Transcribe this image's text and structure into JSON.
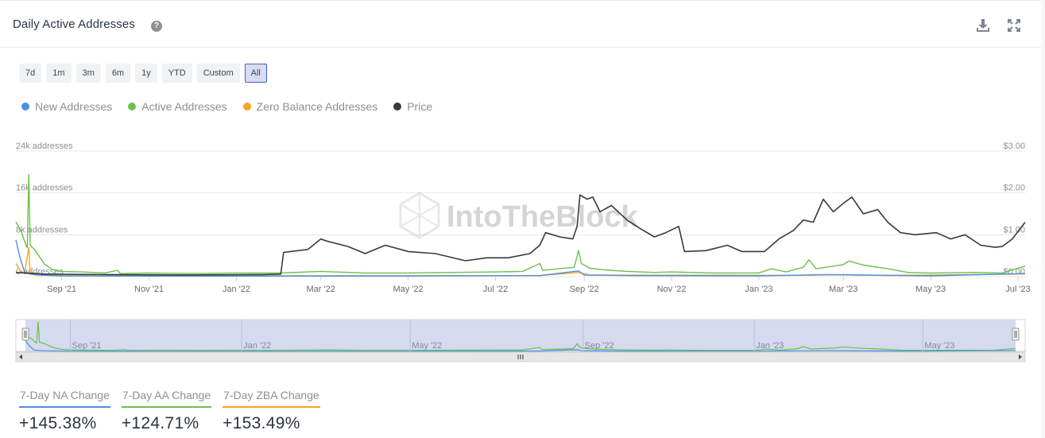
{
  "header": {
    "title": "Daily Active Addresses",
    "help_icon": "question-circle-icon",
    "download_icon": "download-icon",
    "fullscreen_icon": "expand-icon"
  },
  "ranges": {
    "options": [
      "7d",
      "1m",
      "3m",
      "6m",
      "1y",
      "YTD",
      "Custom",
      "All"
    ],
    "selected": "All"
  },
  "legend": [
    {
      "label": "New Addresses",
      "color": "#4a90e2"
    },
    {
      "label": "Active Addresses",
      "color": "#6cc04a"
    },
    {
      "label": "Zero Balance Addresses",
      "color": "#f5a623"
    },
    {
      "label": "Price",
      "color": "#3a3a3a"
    }
  ],
  "watermark": "IntoTheBlock",
  "chart_data": {
    "type": "line",
    "x_range": [
      "2021-07-31",
      "2023-07-06"
    ],
    "x_ticks": [
      "Sep '21",
      "Nov '21",
      "Jan '22",
      "Mar '22",
      "May '22",
      "Jul '22",
      "Sep '22",
      "Nov '22",
      "Jan '23",
      "Mar '23",
      "May '23",
      "Jul '23"
    ],
    "y_left": {
      "ticks": [
        "0 addresses",
        "8k addresses",
        "16k addresses",
        "24k addresses"
      ],
      "range": [
        0,
        24000
      ]
    },
    "y_right": {
      "ticks": [
        "$0.00",
        "$1.00",
        "$2.00",
        "$3.00"
      ],
      "range": [
        0,
        3
      ]
    },
    "navigator_ticks": [
      "Sep '21",
      "Jan '22",
      "May '22",
      "Sep '22",
      "Jan '23",
      "May '23"
    ],
    "series": [
      {
        "name": "New Addresses",
        "axis": "left",
        "color": "#4a90e2",
        "points": [
          [
            "2021-07-31",
            7000
          ],
          [
            "2021-08-03",
            3500
          ],
          [
            "2021-08-06",
            900
          ],
          [
            "2021-08-10",
            500
          ],
          [
            "2021-08-15",
            300
          ],
          [
            "2021-09-01",
            150
          ],
          [
            "2021-11-01",
            100
          ],
          [
            "2022-01-01",
            100
          ],
          [
            "2022-05-01",
            120
          ],
          [
            "2022-08-01",
            200
          ],
          [
            "2022-08-28",
            1100
          ],
          [
            "2022-09-01",
            300
          ],
          [
            "2022-10-01",
            200
          ],
          [
            "2023-01-01",
            150
          ],
          [
            "2023-02-20",
            400
          ],
          [
            "2023-03-10",
            300
          ],
          [
            "2023-05-01",
            150
          ],
          [
            "2023-07-06",
            600
          ]
        ]
      },
      {
        "name": "Active Addresses",
        "axis": "left",
        "color": "#6cc04a",
        "points": [
          [
            "2021-07-31",
            10500
          ],
          [
            "2021-08-02",
            9500
          ],
          [
            "2021-08-04",
            8500
          ],
          [
            "2021-08-06",
            6800
          ],
          [
            "2021-08-08",
            5500
          ],
          [
            "2021-08-09",
            19500
          ],
          [
            "2021-08-10",
            6000
          ],
          [
            "2021-08-13",
            5200
          ],
          [
            "2021-08-16",
            4000
          ],
          [
            "2021-08-20",
            2400
          ],
          [
            "2021-08-25",
            1400
          ],
          [
            "2021-09-01",
            1000
          ],
          [
            "2021-09-15",
            900
          ],
          [
            "2021-10-01",
            700
          ],
          [
            "2021-10-10",
            1200
          ],
          [
            "2021-10-12",
            600
          ],
          [
            "2021-11-01",
            700
          ],
          [
            "2021-12-01",
            600
          ],
          [
            "2022-01-01",
            700
          ],
          [
            "2022-02-01",
            700
          ],
          [
            "2022-03-01",
            1000
          ],
          [
            "2022-04-01",
            700
          ],
          [
            "2022-05-01",
            700
          ],
          [
            "2022-06-01",
            800
          ],
          [
            "2022-07-01",
            900
          ],
          [
            "2022-07-20",
            1000
          ],
          [
            "2022-08-01",
            2500
          ],
          [
            "2022-08-03",
            1200
          ],
          [
            "2022-08-25",
            1800
          ],
          [
            "2022-08-28",
            5000
          ],
          [
            "2022-08-30",
            2500
          ],
          [
            "2022-09-05",
            1600
          ],
          [
            "2022-09-15",
            1300
          ],
          [
            "2022-10-01",
            1000
          ],
          [
            "2022-10-20",
            800
          ],
          [
            "2022-11-01",
            900
          ],
          [
            "2022-12-01",
            700
          ],
          [
            "2023-01-01",
            700
          ],
          [
            "2023-01-10",
            1500
          ],
          [
            "2023-01-20",
            900
          ],
          [
            "2023-02-01",
            1800
          ],
          [
            "2023-02-05",
            3200
          ],
          [
            "2023-02-10",
            1500
          ],
          [
            "2023-03-01",
            2300
          ],
          [
            "2023-03-05",
            3000
          ],
          [
            "2023-03-15",
            2200
          ],
          [
            "2023-04-01",
            1500
          ],
          [
            "2023-04-15",
            800
          ],
          [
            "2023-05-01",
            700
          ],
          [
            "2023-06-01",
            800
          ],
          [
            "2023-06-20",
            700
          ],
          [
            "2023-07-06",
            2000
          ]
        ]
      },
      {
        "name": "Zero Balance Addresses",
        "axis": "left",
        "color": "#f5a623",
        "points": [
          [
            "2021-07-31",
            2500
          ],
          [
            "2021-08-03",
            1200
          ],
          [
            "2021-08-06",
            600
          ],
          [
            "2021-08-09",
            5500
          ],
          [
            "2021-08-10",
            900
          ],
          [
            "2021-08-14",
            600
          ],
          [
            "2021-08-20",
            300
          ],
          [
            "2021-09-01",
            200
          ],
          [
            "2022-01-01",
            150
          ],
          [
            "2022-08-01",
            200
          ],
          [
            "2022-08-28",
            800
          ],
          [
            "2022-09-05",
            300
          ],
          [
            "2023-02-01",
            250
          ],
          [
            "2023-03-01",
            400
          ],
          [
            "2023-04-01",
            250
          ],
          [
            "2023-07-06",
            500
          ]
        ]
      },
      {
        "name": "Price",
        "axis": "right",
        "color": "#3a3a3a",
        "points": [
          [
            "2021-07-31",
            0.1
          ],
          [
            "2021-08-20",
            0.06
          ],
          [
            "2021-10-01",
            0.05
          ],
          [
            "2021-12-01",
            0.04
          ],
          [
            "2022-01-20",
            0.05
          ],
          [
            "2022-02-01",
            0.06
          ],
          [
            "2022-02-03",
            0.58
          ],
          [
            "2022-02-20",
            0.65
          ],
          [
            "2022-03-01",
            0.9
          ],
          [
            "2022-03-05",
            0.85
          ],
          [
            "2022-03-20",
            0.72
          ],
          [
            "2022-04-01",
            0.55
          ],
          [
            "2022-04-15",
            0.75
          ],
          [
            "2022-05-01",
            0.6
          ],
          [
            "2022-05-20",
            0.55
          ],
          [
            "2022-06-10",
            0.38
          ],
          [
            "2022-06-25",
            0.45
          ],
          [
            "2022-07-10",
            0.45
          ],
          [
            "2022-07-25",
            0.55
          ],
          [
            "2022-08-01",
            0.75
          ],
          [
            "2022-08-05",
            1.05
          ],
          [
            "2022-08-15",
            0.95
          ],
          [
            "2022-08-24",
            0.9
          ],
          [
            "2022-08-27",
            1.2
          ],
          [
            "2022-08-29",
            1.95
          ],
          [
            "2022-09-03",
            1.85
          ],
          [
            "2022-09-07",
            1.9
          ],
          [
            "2022-09-12",
            1.55
          ],
          [
            "2022-09-20",
            1.7
          ],
          [
            "2022-10-01",
            1.35
          ],
          [
            "2022-10-10",
            1.15
          ],
          [
            "2022-10-20",
            0.95
          ],
          [
            "2022-10-28",
            1.05
          ],
          [
            "2022-11-06",
            1.2
          ],
          [
            "2022-11-10",
            0.6
          ],
          [
            "2022-11-25",
            0.62
          ],
          [
            "2022-12-10",
            0.75
          ],
          [
            "2022-12-20",
            0.6
          ],
          [
            "2023-01-05",
            0.6
          ],
          [
            "2023-01-15",
            0.9
          ],
          [
            "2023-01-25",
            1.1
          ],
          [
            "2023-02-01",
            1.35
          ],
          [
            "2023-02-08",
            1.3
          ],
          [
            "2023-02-15",
            1.85
          ],
          [
            "2023-02-22",
            1.55
          ],
          [
            "2023-03-01",
            1.75
          ],
          [
            "2023-03-07",
            1.9
          ],
          [
            "2023-03-15",
            1.5
          ],
          [
            "2023-03-25",
            1.6
          ],
          [
            "2023-04-01",
            1.3
          ],
          [
            "2023-04-10",
            1.05
          ],
          [
            "2023-04-20",
            1.0
          ],
          [
            "2023-05-05",
            1.05
          ],
          [
            "2023-05-15",
            0.9
          ],
          [
            "2023-05-25",
            1.0
          ],
          [
            "2023-06-05",
            0.75
          ],
          [
            "2023-06-15",
            0.7
          ],
          [
            "2023-06-20",
            0.72
          ],
          [
            "2023-06-27",
            0.9
          ],
          [
            "2023-07-06",
            1.3
          ]
        ]
      }
    ]
  },
  "stats": [
    {
      "label": "7-Day NA Change",
      "value": "+145.38%",
      "color": "#4a90e2"
    },
    {
      "label": "7-Day AA Change",
      "value": "+124.71%",
      "color": "#6cc04a"
    },
    {
      "label": "7-Day ZBA Change",
      "value": "+153.49%",
      "color": "#f5a623"
    }
  ]
}
